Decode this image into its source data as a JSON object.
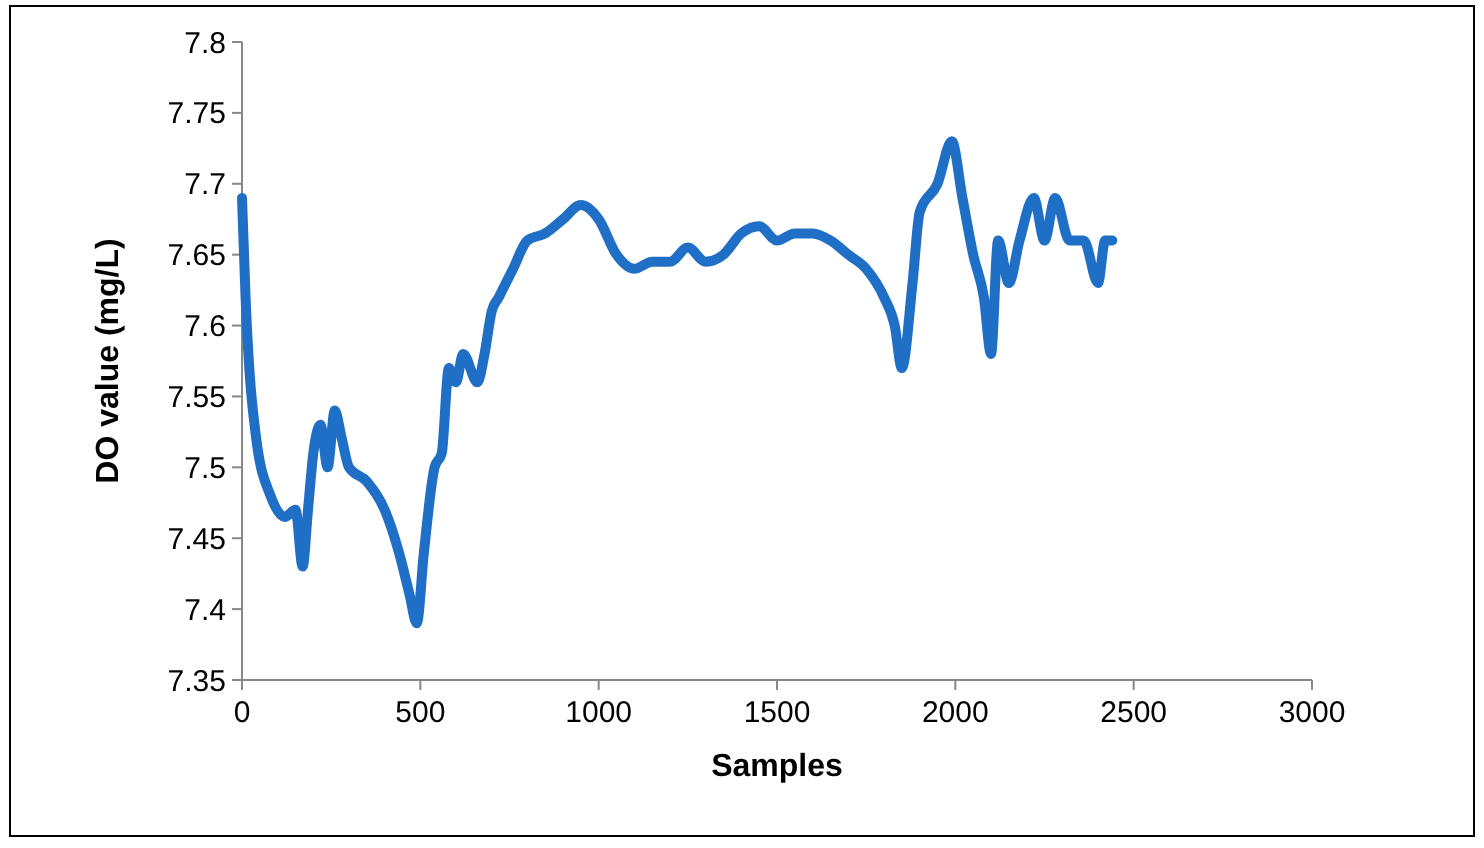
{
  "chart_data": {
    "type": "line",
    "xlabel": "Samples",
    "ylabel": "DO value (mg/L)",
    "xlim": [
      0,
      3000
    ],
    "xticks": [
      0,
      500,
      1000,
      1500,
      2000,
      2500,
      3000
    ],
    "ylim": [
      7.35,
      7.8
    ],
    "yticks": [
      7.35,
      7.4,
      7.45,
      7.5,
      7.55,
      7.6,
      7.65,
      7.7,
      7.75,
      7.8
    ],
    "grid": false,
    "marker": "none",
    "line_style": "solid",
    "series": [
      {
        "color": "#1f6fc6",
        "x": [
          0,
          10,
          40,
          80,
          120,
          150,
          170,
          185,
          200,
          220,
          240,
          260,
          280,
          300,
          350,
          400,
          440,
          470,
          490,
          510,
          540,
          560,
          580,
          600,
          620,
          660,
          680,
          700,
          720,
          760,
          800,
          850,
          900,
          950,
          1000,
          1050,
          1100,
          1150,
          1200,
          1250,
          1300,
          1350,
          1400,
          1450,
          1500,
          1550,
          1600,
          1650,
          1700,
          1750,
          1800,
          1830,
          1850,
          1880,
          1900,
          1950,
          1990,
          2020,
          2050,
          2080,
          2100,
          2120,
          2150,
          2180,
          2220,
          2250,
          2280,
          2320,
          2360,
          2400,
          2420,
          2440
        ],
        "values": [
          7.69,
          7.62,
          7.52,
          7.48,
          7.465,
          7.47,
          7.43,
          7.47,
          7.51,
          7.53,
          7.5,
          7.54,
          7.52,
          7.5,
          7.49,
          7.47,
          7.44,
          7.41,
          7.39,
          7.44,
          7.5,
          7.51,
          7.57,
          7.56,
          7.58,
          7.56,
          7.58,
          7.61,
          7.62,
          7.64,
          7.66,
          7.665,
          7.675,
          7.685,
          7.675,
          7.65,
          7.64,
          7.645,
          7.645,
          7.655,
          7.645,
          7.65,
          7.665,
          7.67,
          7.66,
          7.665,
          7.665,
          7.66,
          7.65,
          7.64,
          7.62,
          7.6,
          7.57,
          7.63,
          7.68,
          7.7,
          7.73,
          7.69,
          7.65,
          7.62,
          7.58,
          7.66,
          7.63,
          7.66,
          7.69,
          7.66,
          7.69,
          7.66,
          7.66,
          7.63,
          7.66,
          7.66
        ]
      }
    ]
  }
}
